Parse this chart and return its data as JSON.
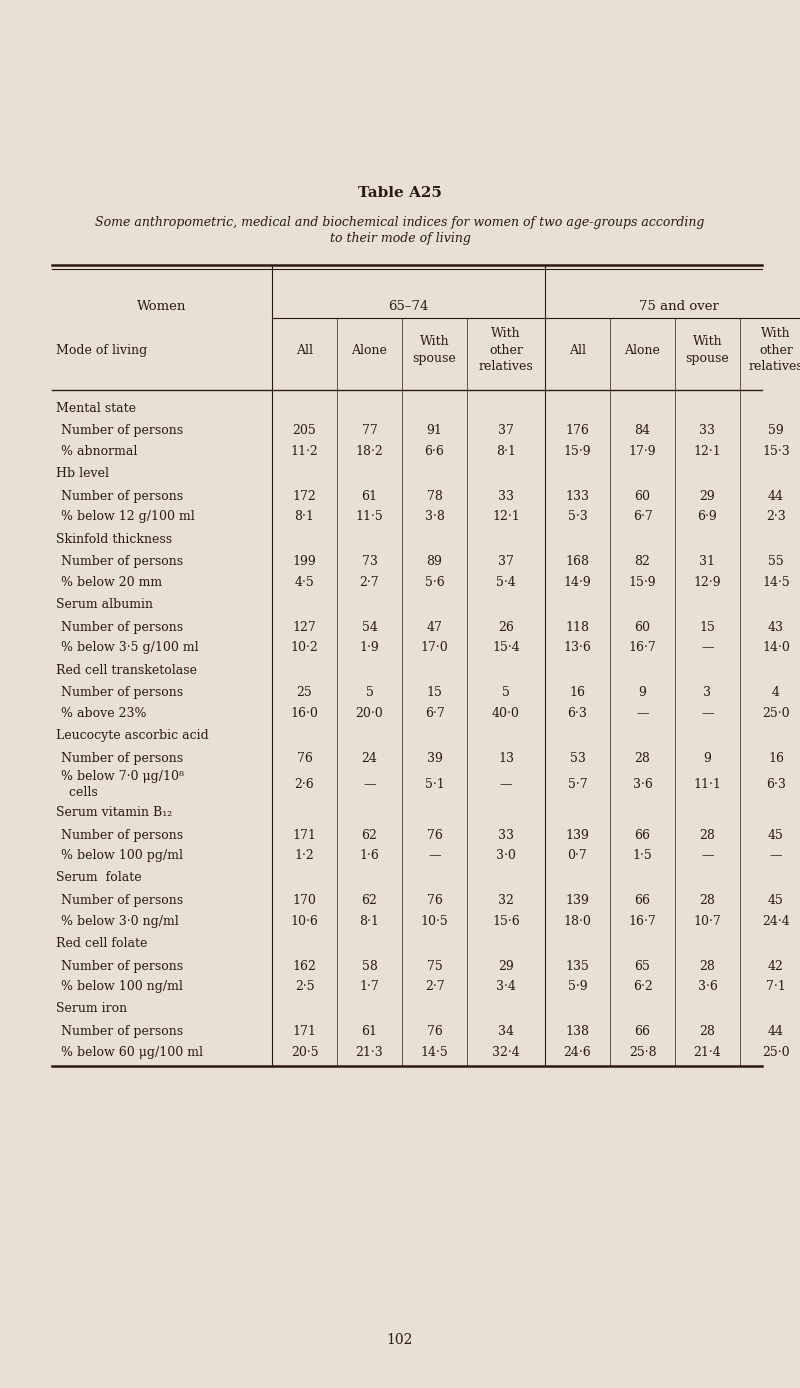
{
  "title": "Table A25",
  "subtitle": "Some anthropometric, medical and biochemical indices for women of two age-groups according\nto their mode of living",
  "background_color": "#e8e0d5",
  "text_color": "#2d1a0e",
  "sections": [
    {
      "section_label": "Mental state",
      "rows": [
        {
          "label": "  Number of persons",
          "values": [
            "205",
            "77",
            "91",
            "37",
            "176",
            "84",
            "33",
            "59"
          ]
        },
        {
          "label": "  % abnormal",
          "values": [
            "11·2",
            "18·2",
            "6·6",
            "8·1",
            "15·9",
            "17·9",
            "12·1",
            "15·3"
          ]
        }
      ]
    },
    {
      "section_label": "Hb level",
      "rows": [
        {
          "label": "  Number of persons",
          "values": [
            "172",
            "61",
            "78",
            "33",
            "133",
            "60",
            "29",
            "44"
          ]
        },
        {
          "label": "  % below 12 g/100 ml",
          "values": [
            "8·1",
            "11·5",
            "3·8",
            "12·1",
            "5·3",
            "6·7",
            "6·9",
            "2·3"
          ]
        }
      ]
    },
    {
      "section_label": "Skinfold thickness",
      "rows": [
        {
          "label": "  Number of persons",
          "values": [
            "199",
            "73",
            "89",
            "37",
            "168",
            "82",
            "31",
            "55"
          ]
        },
        {
          "label": "  % below 20 mm",
          "values": [
            "4·5",
            "2·7",
            "5·6",
            "5·4",
            "14·9",
            "15·9",
            "12·9",
            "14·5"
          ]
        }
      ]
    },
    {
      "section_label": "Serum albumin",
      "rows": [
        {
          "label": "  Number of persons",
          "values": [
            "127",
            "54",
            "47",
            "26",
            "118",
            "60",
            "15",
            "43"
          ]
        },
        {
          "label": "  % below 3·5 g/100 ml",
          "values": [
            "10·2",
            "1·9",
            "17·0",
            "15·4",
            "13·6",
            "16·7",
            "—",
            "14·0"
          ]
        }
      ]
    },
    {
      "section_label": "Red cell transketolase",
      "rows": [
        {
          "label": "  Number of persons",
          "values": [
            "25",
            "5",
            "15",
            "5",
            "16",
            "9",
            "3",
            "4"
          ]
        },
        {
          "label": "  % above 23%",
          "values": [
            "16·0",
            "20·0",
            "6·7",
            "40·0",
            "6·3",
            "—",
            "—",
            "25·0"
          ]
        }
      ]
    },
    {
      "section_label": "Leucocyte ascorbic acid",
      "rows": [
        {
          "label": "  Number of persons",
          "values": [
            "76",
            "24",
            "39",
            "13",
            "53",
            "28",
            "9",
            "16"
          ]
        },
        {
          "label": "  % below 7·0 μg/10⁸\n  cells",
          "values": [
            "2·6",
            "—",
            "5·1",
            "—",
            "5·7",
            "3·6",
            "11·1",
            "6·3"
          ]
        }
      ]
    },
    {
      "section_label": "Serum vitamin B₁₂",
      "rows": [
        {
          "label": "  Number of persons",
          "values": [
            "171",
            "62",
            "76",
            "33",
            "139",
            "66",
            "28",
            "45"
          ]
        },
        {
          "label": "  % below 100 pg/ml",
          "values": [
            "1·2",
            "1·6",
            "—",
            "3·0",
            "0·7",
            "1·5",
            "—",
            "—"
          ]
        }
      ]
    },
    {
      "section_label": "Serum  folate",
      "rows": [
        {
          "label": "  Number of persons",
          "values": [
            "170",
            "62",
            "76",
            "32",
            "139",
            "66",
            "28",
            "45"
          ]
        },
        {
          "label": "  % below 3·0 ng/ml",
          "values": [
            "10·6",
            "8·1",
            "10·5",
            "15·6",
            "18·0",
            "16·7",
            "10·7",
            "24·4"
          ]
        }
      ]
    },
    {
      "section_label": "Red cell folate",
      "rows": [
        {
          "label": "  Number of persons",
          "values": [
            "162",
            "58",
            "75",
            "29",
            "135",
            "65",
            "28",
            "42"
          ]
        },
        {
          "label": "  % below 100 ng/ml",
          "values": [
            "2·5",
            "1·7",
            "2·7",
            "3·4",
            "5·9",
            "6·2",
            "3·6",
            "7·1"
          ]
        }
      ]
    },
    {
      "section_label": "Serum iron",
      "rows": [
        {
          "label": "  Number of persons",
          "values": [
            "171",
            "61",
            "76",
            "34",
            "138",
            "66",
            "28",
            "44"
          ]
        },
        {
          "label": "  % below 60 μg/100 ml",
          "values": [
            "20·5",
            "21·3",
            "14·5",
            "32·4",
            "24·6",
            "25·8",
            "21·4",
            "25·0"
          ]
        }
      ]
    }
  ],
  "page_number": "102"
}
